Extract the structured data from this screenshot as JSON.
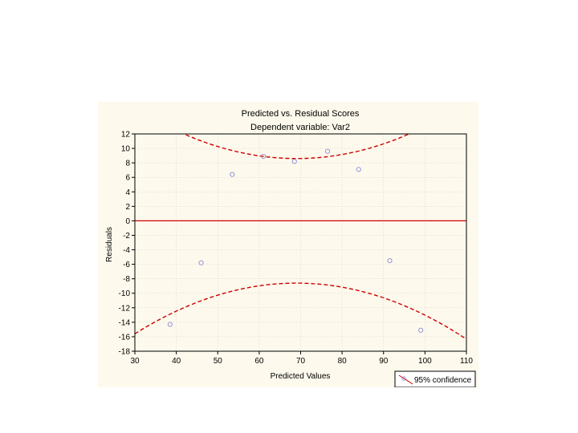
{
  "chart_data": {
    "type": "scatter",
    "title": "Predicted vs. Residual Scores",
    "subtitle": "Dependent variable: Var2",
    "xlabel": "Predicted Values",
    "ylabel": "Residuals",
    "xlim": [
      30,
      110
    ],
    "ylim": [
      -18,
      12
    ],
    "x_ticks": [
      30,
      40,
      50,
      60,
      70,
      80,
      90,
      100,
      110
    ],
    "y_ticks": [
      12,
      10,
      8,
      6,
      4,
      2,
      0,
      -2,
      -4,
      -6,
      -8,
      -10,
      -12,
      -14,
      -16,
      -18
    ],
    "grid": true,
    "points": [
      {
        "x": 38.5,
        "y": -14.3
      },
      {
        "x": 46,
        "y": -5.8
      },
      {
        "x": 53.5,
        "y": 6.4
      },
      {
        "x": 61,
        "y": 8.9
      },
      {
        "x": 68.5,
        "y": 8.2
      },
      {
        "x": 76.5,
        "y": 9.6
      },
      {
        "x": 84,
        "y": 7.1
      },
      {
        "x": 91.5,
        "y": -5.5
      },
      {
        "x": 99,
        "y": -15.1
      }
    ],
    "zero_line": {
      "y": 0,
      "color": "#cc0000"
    },
    "confidence_band": {
      "center_x": 69,
      "upper_min": 8.6,
      "lower_max": -8.6,
      "curvature": 0.0046,
      "color": "#cc0000"
    },
    "legend": {
      "label": "95% confidence",
      "placement": "bottom-right"
    },
    "point_color": "#8a8ad8"
  }
}
